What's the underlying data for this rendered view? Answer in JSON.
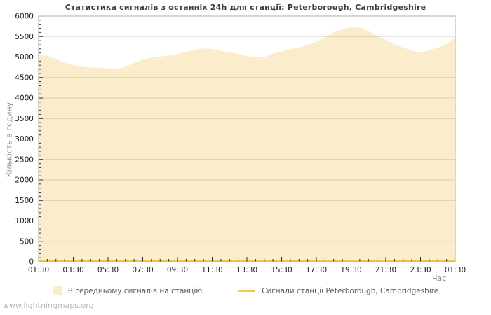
{
  "watermark": "www.lightningmaps.org",
  "chart_data": {
    "type": "area",
    "title": "Статистика сигналів з останніх 24h для станції: Peterborough, Cambridgeshire",
    "xlabel": "Час",
    "ylabel": "Кількість в годину",
    "ylim": [
      0,
      6000
    ],
    "y_tick_step": 500,
    "y_minor_step": 100,
    "y_ticks": [
      0,
      500,
      1000,
      1500,
      2000,
      2500,
      3000,
      3500,
      4000,
      4500,
      5000,
      5500,
      6000
    ],
    "x_tick_labels": [
      "01:30",
      "03:30",
      "05:30",
      "07:30",
      "09:30",
      "11:30",
      "13:30",
      "15:30",
      "17:30",
      "19:30",
      "21:30",
      "23:30",
      "01:30"
    ],
    "grid": true,
    "legend_position": "bottom",
    "colors": {
      "area_fill": "#fbeccb",
      "station_line": "#f3ca4f",
      "grid_overlay": "rgba(140,140,140,0.32)",
      "plot_border": "#ababab",
      "tick": "#2e2e2e",
      "tick_label": "#1d1d1d"
    },
    "x": [
      "01:30",
      "02:00",
      "02:30",
      "03:00",
      "03:30",
      "04:00",
      "04:30",
      "05:00",
      "05:30",
      "06:00",
      "06:30",
      "07:00",
      "07:30",
      "08:00",
      "08:30",
      "09:00",
      "09:30",
      "10:00",
      "10:30",
      "11:00",
      "11:30",
      "12:00",
      "12:30",
      "13:00",
      "13:30",
      "14:00",
      "14:30",
      "15:00",
      "15:30",
      "16:00",
      "16:30",
      "17:00",
      "17:30",
      "18:00",
      "18:30",
      "19:00",
      "19:30",
      "20:00",
      "20:30",
      "21:00",
      "21:30",
      "22:00",
      "22:30",
      "23:00",
      "23:30",
      "00:00",
      "00:30",
      "01:00",
      "01:30"
    ],
    "series": [
      {
        "name": "В середньому сигналів на станцію",
        "type": "area",
        "color": "#fbeccb",
        "values": [
          5050,
          5030,
          4950,
          4860,
          4800,
          4760,
          4740,
          4740,
          4720,
          4700,
          4760,
          4850,
          4940,
          4990,
          5010,
          5040,
          5070,
          5130,
          5180,
          5210,
          5200,
          5150,
          5110,
          5080,
          5020,
          4990,
          5000,
          5080,
          5130,
          5190,
          5230,
          5290,
          5370,
          5490,
          5600,
          5680,
          5740,
          5730,
          5630,
          5520,
          5420,
          5310,
          5230,
          5160,
          5110,
          5170,
          5230,
          5320,
          5470
        ]
      },
      {
        "name": "Сигнали станції Peterborough, Cambridgeshire",
        "type": "line",
        "color": "#f3ca4f",
        "values": [
          0,
          0,
          0,
          0,
          0,
          0,
          0,
          0,
          0,
          0,
          0,
          0,
          0,
          0,
          0,
          0,
          0,
          0,
          0,
          0,
          0,
          0,
          0,
          0,
          0,
          0,
          0,
          0,
          0,
          0,
          0,
          0,
          0,
          0,
          0,
          0,
          0,
          0,
          0,
          0,
          0,
          0,
          0,
          0,
          0,
          0,
          0,
          0,
          0
        ]
      }
    ]
  }
}
